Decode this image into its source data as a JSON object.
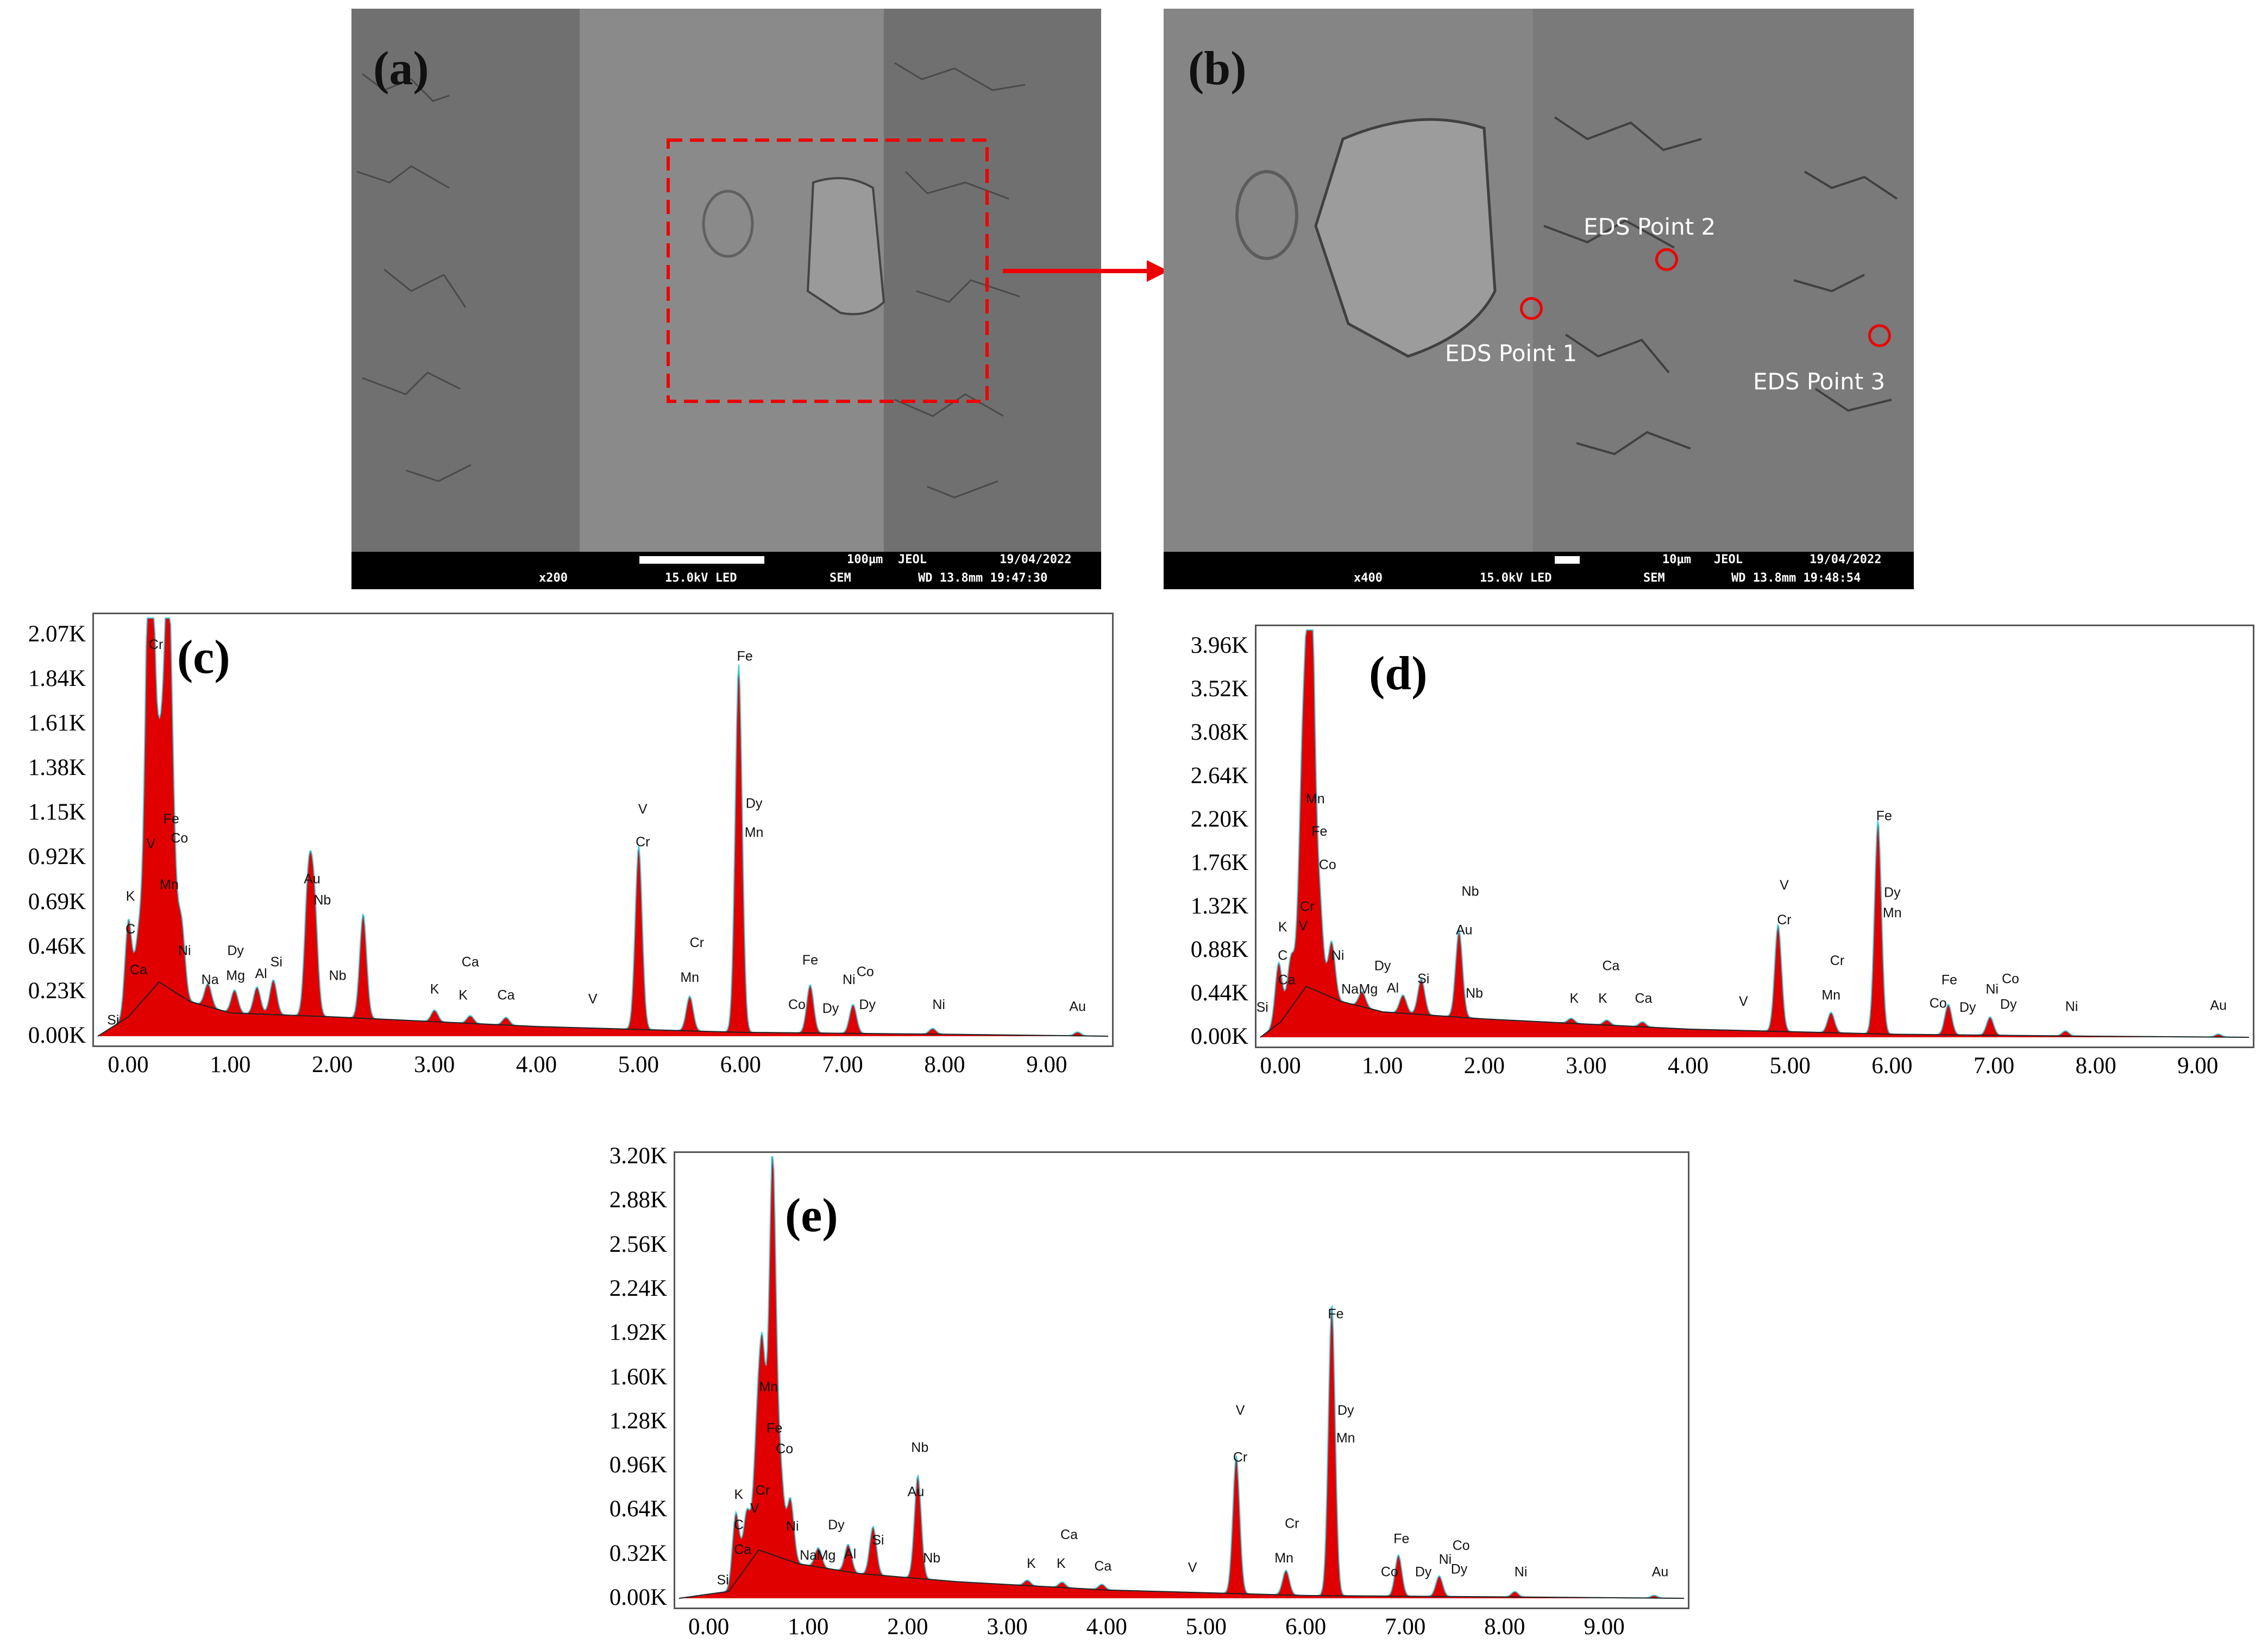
{
  "sem_a": {
    "label": "(a)",
    "info": {
      "scale": "100µm",
      "brand": "JEOL",
      "date": "19/04/2022",
      "mag": "x200",
      "kv": "15.0kV LED",
      "mode": "SEM",
      "wd": "WD 13.8mm 19:47:30"
    }
  },
  "sem_b": {
    "label": "(b)",
    "info": {
      "scale": "10µm",
      "brand": "JEOL",
      "date": "19/04/2022",
      "mag": "x400",
      "kv": "15.0kV LED",
      "mode": "SEM",
      "wd": "WD 13.8mm 19:48:54"
    },
    "points": [
      "EDS Point 1",
      "EDS Point 2",
      "EDS Point 3"
    ]
  },
  "colors": {
    "fill": "#e00000",
    "fit": "#3fd0e0",
    "marker": "#e00000"
  },
  "chart_data": [
    {
      "type": "area",
      "label": "(c)",
      "xlabel": "",
      "ylabel": "",
      "xlim": [
        -0.3,
        9.6
      ],
      "ylim": [
        0,
        2.16
      ],
      "yticks": [
        "0.00K",
        "0.23K",
        "0.46K",
        "0.69K",
        "0.92K",
        "1.15K",
        "1.38K",
        "1.61K",
        "1.84K",
        "2.07K"
      ],
      "xticks": [
        "0.00",
        "1.00",
        "2.00",
        "3.00",
        "4.00",
        "5.00",
        "6.00",
        "7.00",
        "8.00",
        "9.00"
      ],
      "peaks": [
        [
          0.0,
          0.5
        ],
        [
          0.1,
          0.35
        ],
        [
          0.18,
          0.95
        ],
        [
          0.22,
          2.06
        ],
        [
          0.28,
          0.7
        ],
        [
          0.33,
          0.8
        ],
        [
          0.39,
          1.82
        ],
        [
          0.44,
          0.55
        ],
        [
          0.52,
          0.38
        ],
        [
          0.78,
          0.12
        ],
        [
          1.04,
          0.12
        ],
        [
          1.26,
          0.14
        ],
        [
          1.42,
          0.18
        ],
        [
          1.76,
          0.65
        ],
        [
          1.82,
          0.58
        ],
        [
          2.3,
          0.54
        ],
        [
          3.0,
          0.06
        ],
        [
          3.35,
          0.04
        ],
        [
          3.7,
          0.04
        ],
        [
          5.0,
          0.95
        ],
        [
          5.5,
          0.18
        ],
        [
          5.98,
          1.9
        ],
        [
          6.68,
          0.25
        ],
        [
          7.1,
          0.15
        ],
        [
          7.88,
          0.03
        ],
        [
          9.3,
          0.02
        ]
      ],
      "baseline": [
        [
          -0.3,
          0
        ],
        [
          0.0,
          0.1
        ],
        [
          0.3,
          0.28
        ],
        [
          0.6,
          0.18
        ],
        [
          1.0,
          0.12
        ],
        [
          2.0,
          0.1
        ],
        [
          4.0,
          0.05
        ],
        [
          6.0,
          0.02
        ],
        [
          8.0,
          0.01
        ],
        [
          9.6,
          0.0
        ]
      ],
      "annotations": [
        {
          "t": "Cr",
          "x": 0.27,
          "y": 2.0
        },
        {
          "t": "Fe",
          "x": 0.42,
          "y": 1.1
        },
        {
          "t": "Co",
          "x": 0.5,
          "y": 1.0
        },
        {
          "t": "V",
          "x": 0.22,
          "y": 0.97
        },
        {
          "t": "Mn",
          "x": 0.4,
          "y": 0.76
        },
        {
          "t": "K",
          "x": 0.02,
          "y": 0.7
        },
        {
          "t": "C",
          "x": 0.02,
          "y": 0.53
        },
        {
          "t": "Ca",
          "x": 0.1,
          "y": 0.32
        },
        {
          "t": "Ni",
          "x": 0.55,
          "y": 0.42
        },
        {
          "t": "Si",
          "x": -0.15,
          "y": 0.06
        },
        {
          "t": "Na",
          "x": 0.8,
          "y": 0.27
        },
        {
          "t": "Dy",
          "x": 1.05,
          "y": 0.42
        },
        {
          "t": "Mg",
          "x": 1.05,
          "y": 0.29
        },
        {
          "t": "Al",
          "x": 1.3,
          "y": 0.3
        },
        {
          "t": "Si",
          "x": 1.45,
          "y": 0.36
        },
        {
          "t": "Au",
          "x": 1.8,
          "y": 0.79
        },
        {
          "t": "Nb",
          "x": 1.9,
          "y": 0.68
        },
        {
          "t": "Nb",
          "x": 2.05,
          "y": 0.29
        },
        {
          "t": "K",
          "x": 3.0,
          "y": 0.22
        },
        {
          "t": "Ca",
          "x": 3.35,
          "y": 0.36
        },
        {
          "t": "K",
          "x": 3.28,
          "y": 0.19
        },
        {
          "t": "Ca",
          "x": 3.7,
          "y": 0.19
        },
        {
          "t": "V",
          "x": 4.55,
          "y": 0.17
        },
        {
          "t": "V",
          "x": 5.04,
          "y": 1.15
        },
        {
          "t": "Cr",
          "x": 5.04,
          "y": 0.98
        },
        {
          "t": "Cr",
          "x": 5.57,
          "y": 0.46
        },
        {
          "t": "Mn",
          "x": 5.5,
          "y": 0.28
        },
        {
          "t": "Fe",
          "x": 6.04,
          "y": 1.94
        },
        {
          "t": "Dy",
          "x": 6.13,
          "y": 1.18
        },
        {
          "t": "Mn",
          "x": 6.13,
          "y": 1.03
        },
        {
          "t": "Fe",
          "x": 6.68,
          "y": 0.37
        },
        {
          "t": "Co",
          "x": 6.55,
          "y": 0.14
        },
        {
          "t": "Dy",
          "x": 6.88,
          "y": 0.12
        },
        {
          "t": "Ni",
          "x": 7.06,
          "y": 0.27
        },
        {
          "t": "Co",
          "x": 7.22,
          "y": 0.31
        },
        {
          "t": "Dy",
          "x": 7.24,
          "y": 0.14
        },
        {
          "t": "Ni",
          "x": 7.94,
          "y": 0.14
        },
        {
          "t": "Au",
          "x": 9.3,
          "y": 0.13
        }
      ]
    },
    {
      "type": "area",
      "label": "(d)",
      "xlabel": "",
      "ylabel": "",
      "xlim": [
        -0.2,
        9.5
      ],
      "ylim": [
        0,
        4.0
      ],
      "yticks": [
        "0.00K",
        "0.44K",
        "0.88K",
        "1.32K",
        "1.76K",
        "2.20K",
        "2.64K",
        "3.08K",
        "3.52K",
        "3.96K"
      ],
      "xticks": [
        "0.00",
        "1.00",
        "2.00",
        "3.00",
        "4.00",
        "5.00",
        "6.00",
        "7.00",
        "8.00",
        "9.00"
      ],
      "peaks": [
        [
          -0.02,
          0.6
        ],
        [
          0.1,
          0.5
        ],
        [
          0.2,
          1.25
        ],
        [
          0.24,
          1.85
        ],
        [
          0.3,
          3.9
        ],
        [
          0.38,
          0.9
        ],
        [
          0.5,
          0.55
        ],
        [
          0.8,
          0.15
        ],
        [
          1.2,
          0.18
        ],
        [
          1.38,
          0.35
        ],
        [
          1.75,
          0.85
        ],
        [
          2.85,
          0.05
        ],
        [
          3.2,
          0.05
        ],
        [
          3.55,
          0.05
        ],
        [
          4.88,
          1.05
        ],
        [
          5.4,
          0.2
        ],
        [
          5.86,
          2.1
        ],
        [
          6.55,
          0.3
        ],
        [
          6.96,
          0.18
        ],
        [
          7.7,
          0.05
        ],
        [
          9.2,
          0.03
        ]
      ],
      "baseline": [
        [
          -0.2,
          0
        ],
        [
          0.0,
          0.15
        ],
        [
          0.25,
          0.5
        ],
        [
          0.6,
          0.35
        ],
        [
          1.0,
          0.25
        ],
        [
          2.0,
          0.18
        ],
        [
          4.0,
          0.08
        ],
        [
          6.0,
          0.03
        ],
        [
          8.0,
          0.01
        ],
        [
          9.5,
          0.0
        ]
      ],
      "annotations": [
        {
          "t": "Mn",
          "x": 0.34,
          "y": 2.3
        },
        {
          "t": "Fe",
          "x": 0.38,
          "y": 1.98
        },
        {
          "t": "Co",
          "x": 0.46,
          "y": 1.65
        },
        {
          "t": "Cr",
          "x": 0.26,
          "y": 1.24
        },
        {
          "t": "V",
          "x": 0.22,
          "y": 1.05
        },
        {
          "t": "K",
          "x": 0.02,
          "y": 1.04
        },
        {
          "t": "C",
          "x": 0.02,
          "y": 0.76
        },
        {
          "t": "Ca",
          "x": 0.06,
          "y": 0.52
        },
        {
          "t": "Ni",
          "x": 0.56,
          "y": 0.76
        },
        {
          "t": "Si",
          "x": -0.18,
          "y": 0.25
        },
        {
          "t": "Na",
          "x": 0.68,
          "y": 0.43
        },
        {
          "t": "Mg",
          "x": 0.86,
          "y": 0.43
        },
        {
          "t": "Dy",
          "x": 1.0,
          "y": 0.66
        },
        {
          "t": "Al",
          "x": 1.1,
          "y": 0.44
        },
        {
          "t": "Si",
          "x": 1.4,
          "y": 0.53
        },
        {
          "t": "Nb",
          "x": 1.86,
          "y": 1.39
        },
        {
          "t": "Au",
          "x": 1.8,
          "y": 1.01
        },
        {
          "t": "Nb",
          "x": 1.9,
          "y": 0.39
        },
        {
          "t": "K",
          "x": 2.88,
          "y": 0.34
        },
        {
          "t": "Ca",
          "x": 3.24,
          "y": 0.66
        },
        {
          "t": "K",
          "x": 3.16,
          "y": 0.34
        },
        {
          "t": "Ca",
          "x": 3.56,
          "y": 0.34
        },
        {
          "t": "V",
          "x": 4.54,
          "y": 0.31
        },
        {
          "t": "V",
          "x": 4.94,
          "y": 1.45
        },
        {
          "t": "Cr",
          "x": 4.94,
          "y": 1.11
        },
        {
          "t": "Cr",
          "x": 5.46,
          "y": 0.71
        },
        {
          "t": "Mn",
          "x": 5.4,
          "y": 0.37
        },
        {
          "t": "Fe",
          "x": 5.92,
          "y": 2.13
        },
        {
          "t": "Dy",
          "x": 6.0,
          "y": 1.38
        },
        {
          "t": "Mn",
          "x": 6.0,
          "y": 1.18
        },
        {
          "t": "Fe",
          "x": 6.56,
          "y": 0.52
        },
        {
          "t": "Co",
          "x": 6.45,
          "y": 0.29
        },
        {
          "t": "Dy",
          "x": 6.74,
          "y": 0.25
        },
        {
          "t": "Ni",
          "x": 6.98,
          "y": 0.43
        },
        {
          "t": "Co",
          "x": 7.16,
          "y": 0.53
        },
        {
          "t": "Dy",
          "x": 7.14,
          "y": 0.28
        },
        {
          "t": "Ni",
          "x": 7.76,
          "y": 0.26
        },
        {
          "t": "Au",
          "x": 9.2,
          "y": 0.27
        }
      ]
    },
    {
      "type": "area",
      "label": "(e)",
      "xlabel": "",
      "ylabel": "",
      "xlim": [
        -0.3,
        9.8
      ],
      "ylim": [
        0,
        3.2
      ],
      "yticks": [
        "0.00K",
        "0.32K",
        "0.64K",
        "0.96K",
        "1.28K",
        "1.60K",
        "1.92K",
        "2.24K",
        "2.56K",
        "2.88K",
        "3.20K"
      ],
      "xticks": [
        "0.00",
        "1.00",
        "2.00",
        "3.00",
        "4.00",
        "5.00",
        "6.00",
        "7.00",
        "8.00",
        "9.00"
      ],
      "peaks": [
        [
          0.27,
          0.5
        ],
        [
          0.38,
          0.4
        ],
        [
          0.48,
          0.75
        ],
        [
          0.54,
          1.35
        ],
        [
          0.64,
          2.9
        ],
        [
          0.72,
          0.6
        ],
        [
          0.82,
          0.45
        ],
        [
          1.1,
          0.14
        ],
        [
          1.4,
          0.2
        ],
        [
          1.65,
          0.35
        ],
        [
          2.1,
          0.75
        ],
        [
          3.2,
          0.04
        ],
        [
          3.55,
          0.04
        ],
        [
          3.95,
          0.04
        ],
        [
          5.3,
          1.0
        ],
        [
          5.8,
          0.18
        ],
        [
          6.26,
          2.12
        ],
        [
          6.93,
          0.3
        ],
        [
          7.34,
          0.15
        ],
        [
          8.1,
          0.04
        ],
        [
          9.5,
          0.02
        ]
      ],
      "baseline": [
        [
          -0.3,
          0
        ],
        [
          0.2,
          0.05
        ],
        [
          0.5,
          0.35
        ],
        [
          0.9,
          0.25
        ],
        [
          1.5,
          0.18
        ],
        [
          2.5,
          0.12
        ],
        [
          4.0,
          0.06
        ],
        [
          6.0,
          0.02
        ],
        [
          8.0,
          0.01
        ],
        [
          9.8,
          0.0
        ]
      ],
      "annotations": [
        {
          "t": "Mn",
          "x": 0.6,
          "y": 1.5
        },
        {
          "t": "Fe",
          "x": 0.66,
          "y": 1.2
        },
        {
          "t": "Co",
          "x": 0.76,
          "y": 1.05
        },
        {
          "t": "Cr",
          "x": 0.54,
          "y": 0.75
        },
        {
          "t": "V",
          "x": 0.46,
          "y": 0.62
        },
        {
          "t": "K",
          "x": 0.3,
          "y": 0.72
        },
        {
          "t": "C",
          "x": 0.3,
          "y": 0.5
        },
        {
          "t": "Ca",
          "x": 0.34,
          "y": 0.32
        },
        {
          "t": "Ni",
          "x": 0.84,
          "y": 0.49
        },
        {
          "t": "Si",
          "x": 0.14,
          "y": 0.1
        },
        {
          "t": "Na",
          "x": 1.0,
          "y": 0.28
        },
        {
          "t": "Mg",
          "x": 1.18,
          "y": 0.28
        },
        {
          "t": "Dy",
          "x": 1.28,
          "y": 0.5
        },
        {
          "t": "Al",
          "x": 1.42,
          "y": 0.29
        },
        {
          "t": "Si",
          "x": 1.7,
          "y": 0.39
        },
        {
          "t": "Nb",
          "x": 2.12,
          "y": 1.06
        },
        {
          "t": "Au",
          "x": 2.08,
          "y": 0.74
        },
        {
          "t": "Nb",
          "x": 2.24,
          "y": 0.26
        },
        {
          "t": "K",
          "x": 3.24,
          "y": 0.22
        },
        {
          "t": "Ca",
          "x": 3.62,
          "y": 0.43
        },
        {
          "t": "K",
          "x": 3.54,
          "y": 0.22
        },
        {
          "t": "Ca",
          "x": 3.96,
          "y": 0.2
        },
        {
          "t": "V",
          "x": 4.86,
          "y": 0.19
        },
        {
          "t": "V",
          "x": 5.34,
          "y": 1.33
        },
        {
          "t": "Cr",
          "x": 5.34,
          "y": 0.99
        },
        {
          "t": "Cr",
          "x": 5.86,
          "y": 0.51
        },
        {
          "t": "Mn",
          "x": 5.78,
          "y": 0.26
        },
        {
          "t": "Fe",
          "x": 6.3,
          "y": 2.03
        },
        {
          "t": "Dy",
          "x": 6.4,
          "y": 1.33
        },
        {
          "t": "Mn",
          "x": 6.4,
          "y": 1.13
        },
        {
          "t": "Fe",
          "x": 6.96,
          "y": 0.4
        },
        {
          "t": "Co",
          "x": 6.84,
          "y": 0.16
        },
        {
          "t": "Dy",
          "x": 7.18,
          "y": 0.16
        },
        {
          "t": "Ni",
          "x": 7.4,
          "y": 0.25
        },
        {
          "t": "Co",
          "x": 7.56,
          "y": 0.35
        },
        {
          "t": "Dy",
          "x": 7.54,
          "y": 0.18
        },
        {
          "t": "Ni",
          "x": 8.16,
          "y": 0.16
        },
        {
          "t": "Au",
          "x": 9.56,
          "y": 0.16
        }
      ]
    }
  ]
}
